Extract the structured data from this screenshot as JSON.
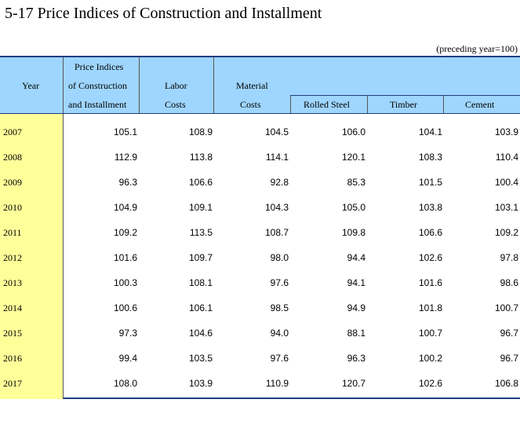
{
  "title": "5-17  Price Indices of Construction and Installment",
  "unit_note": "(preceding year=100)",
  "headers": {
    "year": "Year",
    "pi_line1": "Price Indices",
    "pi_line2": "of Construction",
    "pi_line3": "and Installment",
    "labor_line1": "Labor",
    "labor_line2": "Costs",
    "material_line1": "Material",
    "material_line2": "Costs",
    "rolled_steel": "Rolled Steel",
    "timber": "Timber",
    "cement": "Cement"
  },
  "rows": [
    {
      "year": "2007",
      "price_index": "105.1",
      "labor": "108.9",
      "material": "104.5",
      "rolled_steel": "106.0",
      "timber": "104.1",
      "cement": "103.9"
    },
    {
      "year": "2008",
      "price_index": "112.9",
      "labor": "113.8",
      "material": "114.1",
      "rolled_steel": "120.1",
      "timber": "108.3",
      "cement": "110.4"
    },
    {
      "year": "2009",
      "price_index": "96.3",
      "labor": "106.6",
      "material": "92.8",
      "rolled_steel": "85.3",
      "timber": "101.5",
      "cement": "100.4"
    },
    {
      "year": "2010",
      "price_index": "104.9",
      "labor": "109.1",
      "material": "104.3",
      "rolled_steel": "105.0",
      "timber": "103.8",
      "cement": "103.1"
    },
    {
      "year": "2011",
      "price_index": "109.2",
      "labor": "113.5",
      "material": "108.7",
      "rolled_steel": "109.8",
      "timber": "106.6",
      "cement": "109.2"
    },
    {
      "year": "2012",
      "price_index": "101.6",
      "labor": "109.7",
      "material": "98.0",
      "rolled_steel": "94.4",
      "timber": "102.6",
      "cement": "97.8"
    },
    {
      "year": "2013",
      "price_index": "100.3",
      "labor": "108.1",
      "material": "97.6",
      "rolled_steel": "94.1",
      "timber": "101.6",
      "cement": "98.6"
    },
    {
      "year": "2014",
      "price_index": "100.6",
      "labor": "106.1",
      "material": "98.5",
      "rolled_steel": "94.9",
      "timber": "101.8",
      "cement": "100.7"
    },
    {
      "year": "2015",
      "price_index": "97.3",
      "labor": "104.6",
      "material": "94.0",
      "rolled_steel": "88.1",
      "timber": "100.7",
      "cement": "96.7"
    },
    {
      "year": "2016",
      "price_index": "99.4",
      "labor": "103.5",
      "material": "97.6",
      "rolled_steel": "96.3",
      "timber": "100.2",
      "cement": "96.7"
    },
    {
      "year": "2017",
      "price_index": "108.0",
      "labor": "103.9",
      "material": "110.9",
      "rolled_steel": "120.7",
      "timber": "102.6",
      "cement": "106.8"
    }
  ]
}
